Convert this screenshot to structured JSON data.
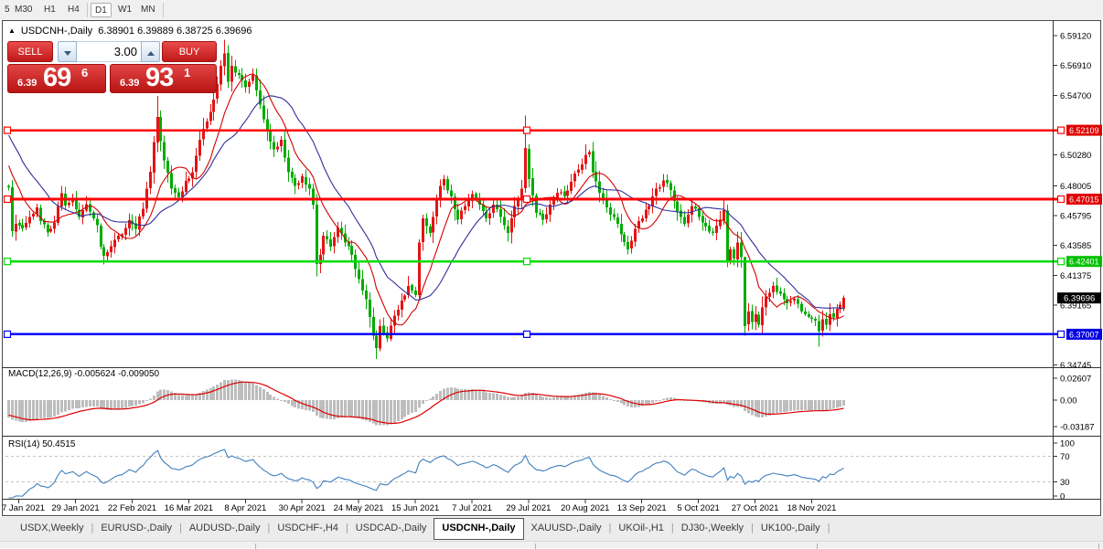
{
  "toolbar": {
    "items": [
      {
        "label": "5",
        "active": false
      },
      {
        "label": "M30",
        "active": false
      },
      {
        "label": "H1",
        "active": false
      },
      {
        "label": "H4",
        "active": false
      },
      {
        "label": "D1",
        "active": true
      },
      {
        "label": "W1",
        "active": false
      },
      {
        "label": "MN",
        "active": false
      }
    ]
  },
  "header": {
    "symbol": "USDCNH-,Daily",
    "open": "6.38901",
    "high": "6.39889",
    "low": "6.38725",
    "close": "6.39696"
  },
  "trade_panel": {
    "sell_label": "SELL",
    "buy_label": "BUY",
    "volume": "3.00",
    "sell_price": {
      "small": "6.39",
      "big": "69",
      "sup": "6"
    },
    "buy_price": {
      "small": "6.39",
      "big": "93",
      "sup": "1"
    }
  },
  "price_axis": {
    "ticks": [
      "6.59120",
      "6.56910",
      "6.54700",
      "6.50280",
      "6.48005",
      "6.45795",
      "6.43585",
      "6.41375",
      "6.39165",
      "6.34745"
    ]
  },
  "hlines": [
    {
      "value": 6.52109,
      "label": "6.52109",
      "color": "#ff0404",
      "box": "#e00000"
    },
    {
      "value": 6.47015,
      "label": "6.47015",
      "color": "#ff0404",
      "box": "#e00000"
    },
    {
      "value": 6.42401,
      "label": "6.42401",
      "color": "#00dd00",
      "box": "#00c000"
    },
    {
      "value": 6.37007,
      "label": "6.37007",
      "color": "#0202ff",
      "box": "#0000e0"
    }
  ],
  "current_price": {
    "label": "6.39696",
    "box": "#000000"
  },
  "chart_data": {
    "type": "candlestick",
    "title": "USDCNH-,Daily",
    "n": 237,
    "up_color": "#e41414",
    "down_color": "#00ab00",
    "ma_fast": {
      "period": 10,
      "color": "#d40000"
    },
    "ma_slow": {
      "period": 21,
      "color": "#30309c"
    },
    "prehistory": [
      [
        0,
        6.58
      ],
      [
        10,
        6.572
      ],
      [
        20,
        6.556
      ],
      [
        28,
        6.528
      ],
      [
        34,
        6.5
      ],
      [
        39,
        6.4795
      ]
    ],
    "anchors": [
      [
        0,
        6.479
      ],
      [
        1,
        6.4465
      ],
      [
        2,
        6.452
      ],
      [
        4,
        6.4485
      ],
      [
        6,
        6.457
      ],
      [
        8,
        6.464
      ],
      [
        9,
        6.454
      ],
      [
        11,
        6.4455
      ],
      [
        13,
        6.453
      ],
      [
        15,
        6.4745
      ],
      [
        16,
        6.4655
      ],
      [
        18,
        6.47
      ],
      [
        20,
        6.457
      ],
      [
        22,
        6.4665
      ],
      [
        24,
        6.456
      ],
      [
        25,
        6.451
      ],
      [
        26,
        6.435
      ],
      [
        27,
        6.428
      ],
      [
        28,
        6.431
      ],
      [
        30,
        6.44
      ],
      [
        32,
        6.444
      ],
      [
        34,
        6.4545
      ],
      [
        36,
        6.448
      ],
      [
        38,
        6.463
      ],
      [
        40,
        6.4905
      ],
      [
        42,
        6.531
      ],
      [
        43,
        6.513
      ],
      [
        44,
        6.499
      ],
      [
        46,
        6.478
      ],
      [
        48,
        6.4715
      ],
      [
        50,
        6.4835
      ],
      [
        52,
        6.49
      ],
      [
        54,
        6.514
      ],
      [
        56,
        6.5275
      ],
      [
        58,
        6.544
      ],
      [
        60,
        6.569
      ],
      [
        61,
        6.578
      ],
      [
        62,
        6.557
      ],
      [
        63,
        6.569
      ],
      [
        65,
        6.562
      ],
      [
        67,
        6.553
      ],
      [
        69,
        6.562
      ],
      [
        71,
        6.54
      ],
      [
        73,
        6.521
      ],
      [
        75,
        6.507
      ],
      [
        77,
        6.514
      ],
      [
        79,
        6.49
      ],
      [
        81,
        6.48
      ],
      [
        83,
        6.487
      ],
      [
        85,
        6.478
      ],
      [
        86,
        6.466
      ],
      [
        87,
        6.422
      ],
      [
        88,
        6.429
      ],
      [
        89,
        6.443
      ],
      [
        91,
        6.435
      ],
      [
        93,
        6.449
      ],
      [
        95,
        6.438
      ],
      [
        97,
        6.429
      ],
      [
        99,
        6.411
      ],
      [
        101,
        6.396
      ],
      [
        102,
        6.383
      ],
      [
        103,
        6.369
      ],
      [
        104,
        6.36
      ],
      [
        105,
        6.376
      ],
      [
        107,
        6.367
      ],
      [
        109,
        6.384
      ],
      [
        111,
        6.395
      ],
      [
        113,
        6.406
      ],
      [
        115,
        6.399
      ],
      [
        116,
        6.438
      ],
      [
        117,
        6.456
      ],
      [
        119,
        6.445
      ],
      [
        121,
        6.471
      ],
      [
        123,
        6.485
      ],
      [
        125,
        6.472
      ],
      [
        127,
        6.455
      ],
      [
        129,
        6.465
      ],
      [
        131,
        6.474
      ],
      [
        133,
        6.466
      ],
      [
        135,
        6.456
      ],
      [
        137,
        6.466
      ],
      [
        139,
        6.457
      ],
      [
        141,
        6.445
      ],
      [
        143,
        6.465
      ],
      [
        145,
        6.478
      ],
      [
        146,
        6.508
      ],
      [
        147,
        6.485
      ],
      [
        149,
        6.46
      ],
      [
        151,
        6.455
      ],
      [
        153,
        6.466
      ],
      [
        155,
        6.475
      ],
      [
        157,
        6.472
      ],
      [
        159,
        6.483
      ],
      [
        161,
        6.492
      ],
      [
        163,
        6.503
      ],
      [
        164,
        6.505
      ],
      [
        165,
        6.49
      ],
      [
        167,
        6.475
      ],
      [
        169,
        6.464
      ],
      [
        171,
        6.457
      ],
      [
        173,
        6.444
      ],
      [
        175,
        6.433
      ],
      [
        177,
        6.448
      ],
      [
        179,
        6.456
      ],
      [
        181,
        6.465
      ],
      [
        183,
        6.478
      ],
      [
        185,
        6.484
      ],
      [
        187,
        6.477
      ],
      [
        189,
        6.461
      ],
      [
        191,
        6.452
      ],
      [
        193,
        6.465
      ],
      [
        195,
        6.457
      ],
      [
        197,
        6.45
      ],
      [
        199,
        6.445
      ],
      [
        201,
        6.455
      ],
      [
        202,
        6.462
      ],
      [
        203,
        6.4235
      ],
      [
        204,
        6.433
      ],
      [
        205,
        6.426
      ],
      [
        206,
        6.438
      ],
      [
        207,
        6.427
      ],
      [
        208,
        6.377
      ],
      [
        209,
        6.387
      ],
      [
        210,
        6.379
      ],
      [
        211,
        6.385
      ],
      [
        212,
        6.377
      ],
      [
        213,
        6.39
      ],
      [
        214,
        6.398
      ],
      [
        216,
        6.406
      ],
      [
        218,
        6.4
      ],
      [
        220,
        6.393
      ],
      [
        222,
        6.3965
      ],
      [
        224,
        6.387
      ],
      [
        226,
        6.383
      ],
      [
        228,
        6.38
      ],
      [
        229,
        6.3725
      ],
      [
        230,
        6.381
      ],
      [
        231,
        6.377
      ],
      [
        232,
        6.385
      ],
      [
        233,
        6.3825
      ],
      [
        234,
        6.389
      ],
      [
        235,
        6.392
      ],
      [
        236,
        6.39696
      ]
    ],
    "overrides": {
      "42": {
        "h": 6.5466
      },
      "61": {
        "h": 6.588
      },
      "87": {
        "o": 6.466,
        "l": 6.413
      },
      "104": {
        "l": 6.3516
      },
      "146": {
        "h": 6.532
      },
      "208": {
        "o": 6.427,
        "h": 6.4275,
        "l": 6.369,
        "c": 6.376
      },
      "229": {
        "l": 6.361
      },
      "236": {
        "o": 6.38901,
        "h": 6.39889,
        "l": 6.38725,
        "c": 6.39696
      }
    }
  },
  "macd": {
    "title": "MACD(12,26,9)",
    "value_main": "-0.005624",
    "value_signal": "-0.009050",
    "scale": [
      "0.02607",
      "0.00",
      "-0.03187"
    ],
    "histogram_color": "#bdbdbd",
    "signal_color": "#dd0000"
  },
  "rsi": {
    "title": "RSI(14)",
    "value": "50.4515",
    "scale": [
      "100",
      "70",
      "30",
      "0"
    ],
    "levels": [
      70,
      30
    ],
    "line_color": "#3f7fbf"
  },
  "date_axis": {
    "labels": [
      "7 Jan 2021",
      "29 Jan 2021",
      "22 Feb 2021",
      "16 Mar 2021",
      "8 Apr 2021",
      "30 Apr 2021",
      "24 May 2021",
      "15 Jun 2021",
      "7 Jul 2021",
      "29 Jul 2021",
      "20 Aug 2021",
      "13 Sep 2021",
      "5 Oct 2021",
      "27 Oct 2021",
      "18 Nov 2021"
    ]
  },
  "tabs": {
    "items": [
      {
        "label": "USDX,Weekly",
        "active": false
      },
      {
        "label": "EURUSD-,Daily",
        "active": false
      },
      {
        "label": "AUDUSD-,Daily",
        "active": false
      },
      {
        "label": "USDCHF-,H4",
        "active": false
      },
      {
        "label": "USDCAD-,Daily",
        "active": false
      },
      {
        "label": "USDCNH-,Daily",
        "active": true
      },
      {
        "label": "XAUUSD-,Daily",
        "active": false
      },
      {
        "label": "UKOil-,H1",
        "active": false
      },
      {
        "label": "DJ30-,Weekly",
        "active": false
      },
      {
        "label": "UK100-,Daily",
        "active": false
      }
    ]
  }
}
